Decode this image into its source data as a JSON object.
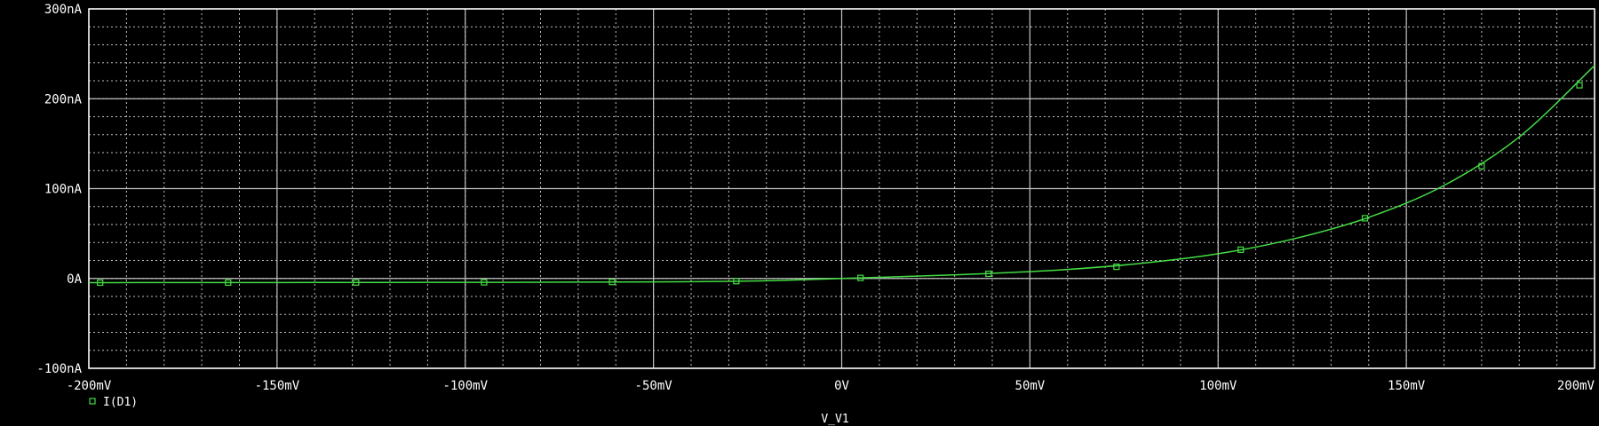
{
  "chart_data": {
    "type": "line",
    "xlabel": "V_V1",
    "x_unit": "mV",
    "y_unit": "nA",
    "xlim": [
      -200,
      200
    ],
    "ylim": [
      -100,
      300
    ],
    "x_ticks": [
      -200,
      -150,
      -100,
      -50,
      0,
      50,
      100,
      150,
      200
    ],
    "x_tick_labels": [
      "-200mV",
      "-150mV",
      "-100mV",
      "-50mV",
      "0V",
      "50mV",
      "100mV",
      "150mV",
      "200mV"
    ],
    "y_ticks": [
      -100,
      0,
      100,
      200,
      300
    ],
    "y_tick_labels": [
      "-100nA",
      "0A",
      "100nA",
      "200nA",
      "300nA"
    ],
    "grid": true,
    "legend_position": "bottom-left",
    "colors": {
      "background": "#000000",
      "grid": "#c0c0c0",
      "series": "#44dd44",
      "text": "#ffffff"
    },
    "series": [
      {
        "name": "I(D1)",
        "marker": "square",
        "x": [
          -200,
          -180,
          -160,
          -140,
          -120,
          -100,
          -80,
          -60,
          -40,
          -20,
          0,
          20,
          40,
          60,
          80,
          100,
          120,
          140,
          160,
          180,
          200
        ],
        "values": [
          -4.7,
          -4.6,
          -4.6,
          -4.5,
          -4.4,
          -4.3,
          -4.2,
          -3.9,
          -3.6,
          -2.6,
          0,
          2.6,
          5.7,
          10.0,
          17.0,
          27.5,
          44.0,
          68.0,
          103.5,
          157.5,
          237.0
        ],
        "marker_x": [
          -197,
          -163,
          -129,
          -95,
          -61,
          -28,
          5,
          39,
          73,
          106,
          139,
          170,
          196
        ],
        "marker_y": [
          -4.7,
          -4.6,
          -4.5,
          -4.3,
          -3.9,
          -3.0,
          0.6,
          5.2,
          13.0,
          32.0,
          67.0,
          125.0,
          215.0
        ]
      }
    ]
  }
}
